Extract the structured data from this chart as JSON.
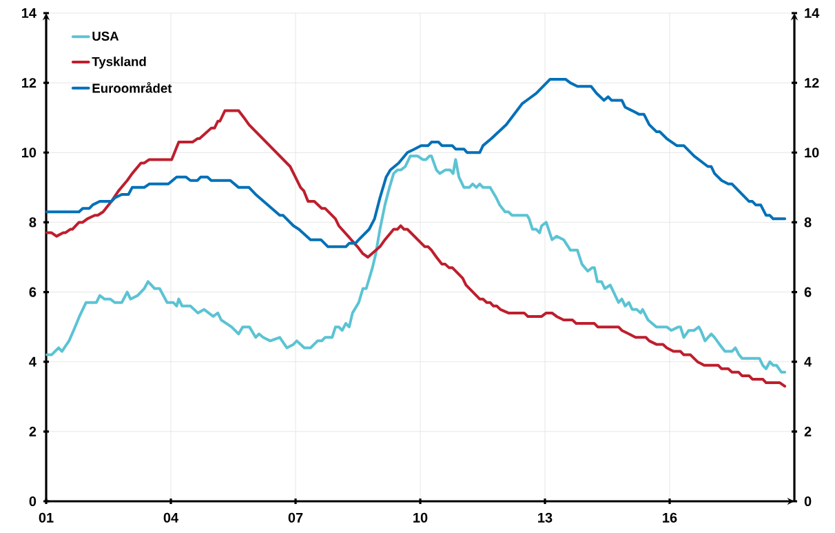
{
  "chart_data": {
    "type": "line",
    "xlim": [
      2001,
      2019
    ],
    "ylim": [
      0,
      14
    ],
    "y2lim": [
      0,
      14
    ],
    "xticks": [
      {
        "value": 2001,
        "label": "01"
      },
      {
        "value": 2004,
        "label": "04"
      },
      {
        "value": 2007,
        "label": "07"
      },
      {
        "value": 2010,
        "label": "10"
      },
      {
        "value": 2013,
        "label": "13"
      },
      {
        "value": 2016,
        "label": "16"
      }
    ],
    "yticks": [
      0,
      2,
      4,
      6,
      8,
      10,
      12,
      14
    ],
    "y2ticks": [
      0,
      2,
      4,
      6,
      8,
      10,
      12,
      14
    ],
    "grid": true,
    "legend": "top left",
    "series": [
      {
        "name": "USA",
        "color": "#5bc3d3",
        "x": [
          2001.02,
          2001.13,
          2001.3,
          2001.38,
          2001.55,
          2001.66,
          2001.8,
          2001.96,
          2002.21,
          2002.29,
          2002.4,
          2002.54,
          2002.65,
          2002.82,
          2002.95,
          2003.03,
          2003.2,
          2003.36,
          2003.45,
          2003.61,
          2003.73,
          2003.91,
          2004.06,
          2004.14,
          2004.19,
          2004.27,
          2004.47,
          2004.65,
          2004.8,
          2005.02,
          2005.13,
          2005.21,
          2005.46,
          2005.63,
          2005.73,
          2005.89,
          2006.04,
          2006.12,
          2006.22,
          2006.39,
          2006.62,
          2006.79,
          2006.95,
          2007.03,
          2007.21,
          2007.36,
          2007.53,
          2007.63,
          2007.71,
          2007.88,
          2007.96,
          2008.04,
          2008.12,
          2008.21,
          2008.29,
          2008.37,
          2008.52,
          2008.62,
          2008.7,
          2008.85,
          2008.93,
          2009.03,
          2009.15,
          2009.26,
          2009.36,
          2009.45,
          2009.53,
          2009.64,
          2009.76,
          2009.86,
          2009.94,
          2010.06,
          2010.14,
          2010.22,
          2010.27,
          2010.39,
          2010.47,
          2010.6,
          2010.72,
          2010.79,
          2010.85,
          2010.93,
          2011.05,
          2011.18,
          2011.26,
          2011.35,
          2011.43,
          2011.51,
          2011.68,
          2011.83,
          2011.91,
          2012.04,
          2012.12,
          2012.21,
          2012.57,
          2012.62,
          2012.7,
          2012.79,
          2012.87,
          2012.92,
          2013.03,
          2013.17,
          2013.28,
          2013.45,
          2013.56,
          2013.61,
          2013.78,
          2013.89,
          2014.03,
          2014.14,
          2014.19,
          2014.26,
          2014.36,
          2014.44,
          2014.57,
          2014.77,
          2014.85,
          2014.93,
          2015.02,
          2015.1,
          2015.21,
          2015.3,
          2015.35,
          2015.48,
          2015.68,
          2015.93,
          2016.04,
          2016.21,
          2016.26,
          2016.34,
          2016.46,
          2016.59,
          2016.7,
          2016.75,
          2016.85,
          2017.0,
          2017.08,
          2017.2,
          2017.33,
          2017.5,
          2017.58,
          2017.67,
          2017.74,
          2018.16,
          2018.24,
          2018.32,
          2018.41,
          2018.49,
          2018.57,
          2018.69,
          2018.77
        ],
        "values": [
          4.2,
          4.2,
          4.4,
          4.3,
          4.6,
          4.9,
          5.3,
          5.7,
          5.7,
          5.9,
          5.8,
          5.8,
          5.7,
          5.7,
          6.0,
          5.8,
          5.9,
          6.1,
          6.3,
          6.1,
          6.1,
          5.7,
          5.7,
          5.6,
          5.8,
          5.6,
          5.6,
          5.4,
          5.5,
          5.3,
          5.4,
          5.2,
          5.0,
          4.8,
          5.0,
          5.0,
          4.7,
          4.8,
          4.7,
          4.6,
          4.7,
          4.4,
          4.5,
          4.6,
          4.4,
          4.4,
          4.6,
          4.6,
          4.7,
          4.7,
          5.0,
          5.0,
          4.9,
          5.1,
          5.0,
          5.4,
          5.7,
          6.1,
          6.1,
          6.7,
          7.1,
          7.8,
          8.5,
          9.0,
          9.4,
          9.5,
          9.5,
          9.6,
          9.9,
          9.9,
          9.9,
          9.8,
          9.8,
          9.9,
          9.9,
          9.5,
          9.4,
          9.5,
          9.5,
          9.4,
          9.8,
          9.3,
          9.0,
          9.0,
          9.1,
          9.0,
          9.1,
          9.0,
          9.0,
          8.7,
          8.5,
          8.3,
          8.3,
          8.2,
          8.2,
          8.1,
          7.8,
          7.8,
          7.7,
          7.9,
          8.0,
          7.5,
          7.6,
          7.5,
          7.3,
          7.2,
          7.2,
          6.8,
          6.6,
          6.7,
          6.7,
          6.3,
          6.3,
          6.1,
          6.2,
          5.7,
          5.8,
          5.6,
          5.7,
          5.5,
          5.5,
          5.4,
          5.5,
          5.2,
          5.0,
          5.0,
          4.9,
          5.0,
          5.0,
          4.7,
          4.9,
          4.9,
          5.0,
          4.9,
          4.6,
          4.8,
          4.7,
          4.5,
          4.3,
          4.3,
          4.4,
          4.2,
          4.1,
          4.1,
          3.9,
          3.8,
          4.0,
          3.9,
          3.9,
          3.7,
          3.7
        ]
      },
      {
        "name": "Tyskland",
        "color": "#be1e2d",
        "x": [
          2001.02,
          2001.13,
          2001.25,
          2001.41,
          2001.46,
          2001.58,
          2001.63,
          2001.79,
          2001.88,
          2001.99,
          2002.17,
          2002.24,
          2002.37,
          2002.57,
          2002.74,
          2002.95,
          2003.07,
          2003.28,
          2003.36,
          2003.48,
          2004.02,
          2004.19,
          2004.52,
          2004.64,
          2004.69,
          2004.97,
          2005.05,
          2005.13,
          2005.18,
          2005.3,
          2005.63,
          2005.76,
          2005.88,
          2006.87,
          2007.12,
          2007.2,
          2007.3,
          2007.45,
          2007.63,
          2007.71,
          2007.96,
          2008.04,
          2008.49,
          2008.62,
          2008.74,
          2009.03,
          2009.15,
          2009.36,
          2009.45,
          2009.53,
          2009.61,
          2009.69,
          2010.11,
          2010.19,
          2010.27,
          2010.39,
          2010.52,
          2010.6,
          2010.69,
          2010.77,
          2011.02,
          2011.1,
          2011.43,
          2011.51,
          2011.6,
          2011.68,
          2011.76,
          2011.84,
          2011.93,
          2012.12,
          2012.5,
          2012.59,
          2012.92,
          2013.03,
          2013.17,
          2013.28,
          2013.45,
          2013.66,
          2013.75,
          2014.19,
          2014.27,
          2014.77,
          2014.85,
          2015.02,
          2015.18,
          2015.43,
          2015.51,
          2015.68,
          2015.84,
          2015.93,
          2016.09,
          2016.26,
          2016.34,
          2016.5,
          2016.67,
          2016.83,
          2017.17,
          2017.25,
          2017.41,
          2017.5,
          2017.66,
          2017.74,
          2017.91,
          2017.99,
          2018.24,
          2018.32,
          2018.65,
          2018.77
        ],
        "values": [
          7.7,
          7.7,
          7.6,
          7.7,
          7.7,
          7.8,
          7.8,
          8.0,
          8.0,
          8.1,
          8.2,
          8.2,
          8.3,
          8.6,
          8.9,
          9.2,
          9.4,
          9.7,
          9.7,
          9.8,
          9.8,
          10.3,
          10.3,
          10.4,
          10.4,
          10.7,
          10.7,
          10.9,
          10.9,
          11.2,
          11.2,
          11.0,
          10.8,
          9.6,
          9.0,
          8.9,
          8.6,
          8.6,
          8.4,
          8.4,
          8.1,
          7.9,
          7.3,
          7.1,
          7.0,
          7.3,
          7.5,
          7.8,
          7.8,
          7.9,
          7.8,
          7.8,
          7.3,
          7.3,
          7.2,
          7.0,
          6.8,
          6.8,
          6.7,
          6.7,
          6.4,
          6.2,
          5.8,
          5.8,
          5.7,
          5.7,
          5.6,
          5.6,
          5.5,
          5.4,
          5.4,
          5.3,
          5.3,
          5.4,
          5.4,
          5.3,
          5.2,
          5.2,
          5.1,
          5.1,
          5.0,
          5.0,
          4.9,
          4.8,
          4.7,
          4.7,
          4.6,
          4.5,
          4.5,
          4.4,
          4.3,
          4.3,
          4.2,
          4.2,
          4.0,
          3.9,
          3.9,
          3.8,
          3.8,
          3.7,
          3.7,
          3.6,
          3.6,
          3.5,
          3.5,
          3.4,
          3.4,
          3.3
        ]
      },
      {
        "name": "Euroområdet",
        "color": "#0070b8",
        "x": [
          2001.02,
          2001.79,
          2001.88,
          2002.04,
          2002.12,
          2002.29,
          2002.57,
          2002.65,
          2002.82,
          2002.98,
          2003.07,
          2003.36,
          2003.48,
          2003.94,
          2004.14,
          2004.36,
          2004.47,
          2004.64,
          2004.72,
          2004.88,
          2004.97,
          2005.43,
          2005.63,
          2005.88,
          2006.04,
          2006.62,
          2006.7,
          2006.95,
          2007.08,
          2007.36,
          2007.61,
          2007.78,
          2008.21,
          2008.29,
          2008.44,
          2008.52,
          2008.77,
          2008.9,
          2009.03,
          2009.18,
          2009.28,
          2009.48,
          2009.69,
          2009.86,
          2010.02,
          2010.19,
          2010.27,
          2010.44,
          2010.52,
          2010.77,
          2010.85,
          2011.05,
          2011.13,
          2011.43,
          2011.51,
          2011.71,
          2012.07,
          2012.45,
          2012.79,
          2013.12,
          2013.5,
          2013.61,
          2013.78,
          2014.11,
          2014.24,
          2014.42,
          2014.52,
          2014.6,
          2014.85,
          2014.93,
          2015.1,
          2015.26,
          2015.38,
          2015.51,
          2015.68,
          2015.76,
          2015.93,
          2016.17,
          2016.34,
          2016.59,
          2016.92,
          2017.0,
          2017.08,
          2017.25,
          2017.41,
          2017.5,
          2017.91,
          2017.99,
          2018.07,
          2018.19,
          2018.32,
          2018.41,
          2018.49,
          2018.77
        ],
        "values": [
          8.3,
          8.3,
          8.4,
          8.4,
          8.5,
          8.6,
          8.6,
          8.7,
          8.8,
          8.8,
          9.0,
          9.0,
          9.1,
          9.1,
          9.3,
          9.3,
          9.2,
          9.2,
          9.3,
          9.3,
          9.2,
          9.2,
          9.0,
          9.0,
          8.8,
          8.2,
          8.2,
          7.9,
          7.8,
          7.5,
          7.5,
          7.3,
          7.3,
          7.4,
          7.4,
          7.5,
          7.8,
          8.1,
          8.7,
          9.3,
          9.5,
          9.7,
          10.0,
          10.1,
          10.2,
          10.2,
          10.3,
          10.3,
          10.2,
          10.2,
          10.1,
          10.1,
          10.0,
          10.0,
          10.2,
          10.4,
          10.8,
          11.4,
          11.7,
          12.1,
          12.1,
          12.0,
          11.9,
          11.9,
          11.7,
          11.5,
          11.6,
          11.5,
          11.5,
          11.3,
          11.2,
          11.1,
          11.1,
          10.8,
          10.6,
          10.6,
          10.4,
          10.2,
          10.2,
          9.9,
          9.6,
          9.6,
          9.4,
          9.2,
          9.1,
          9.1,
          8.6,
          8.6,
          8.5,
          8.5,
          8.2,
          8.2,
          8.1,
          8.1
        ]
      }
    ]
  }
}
